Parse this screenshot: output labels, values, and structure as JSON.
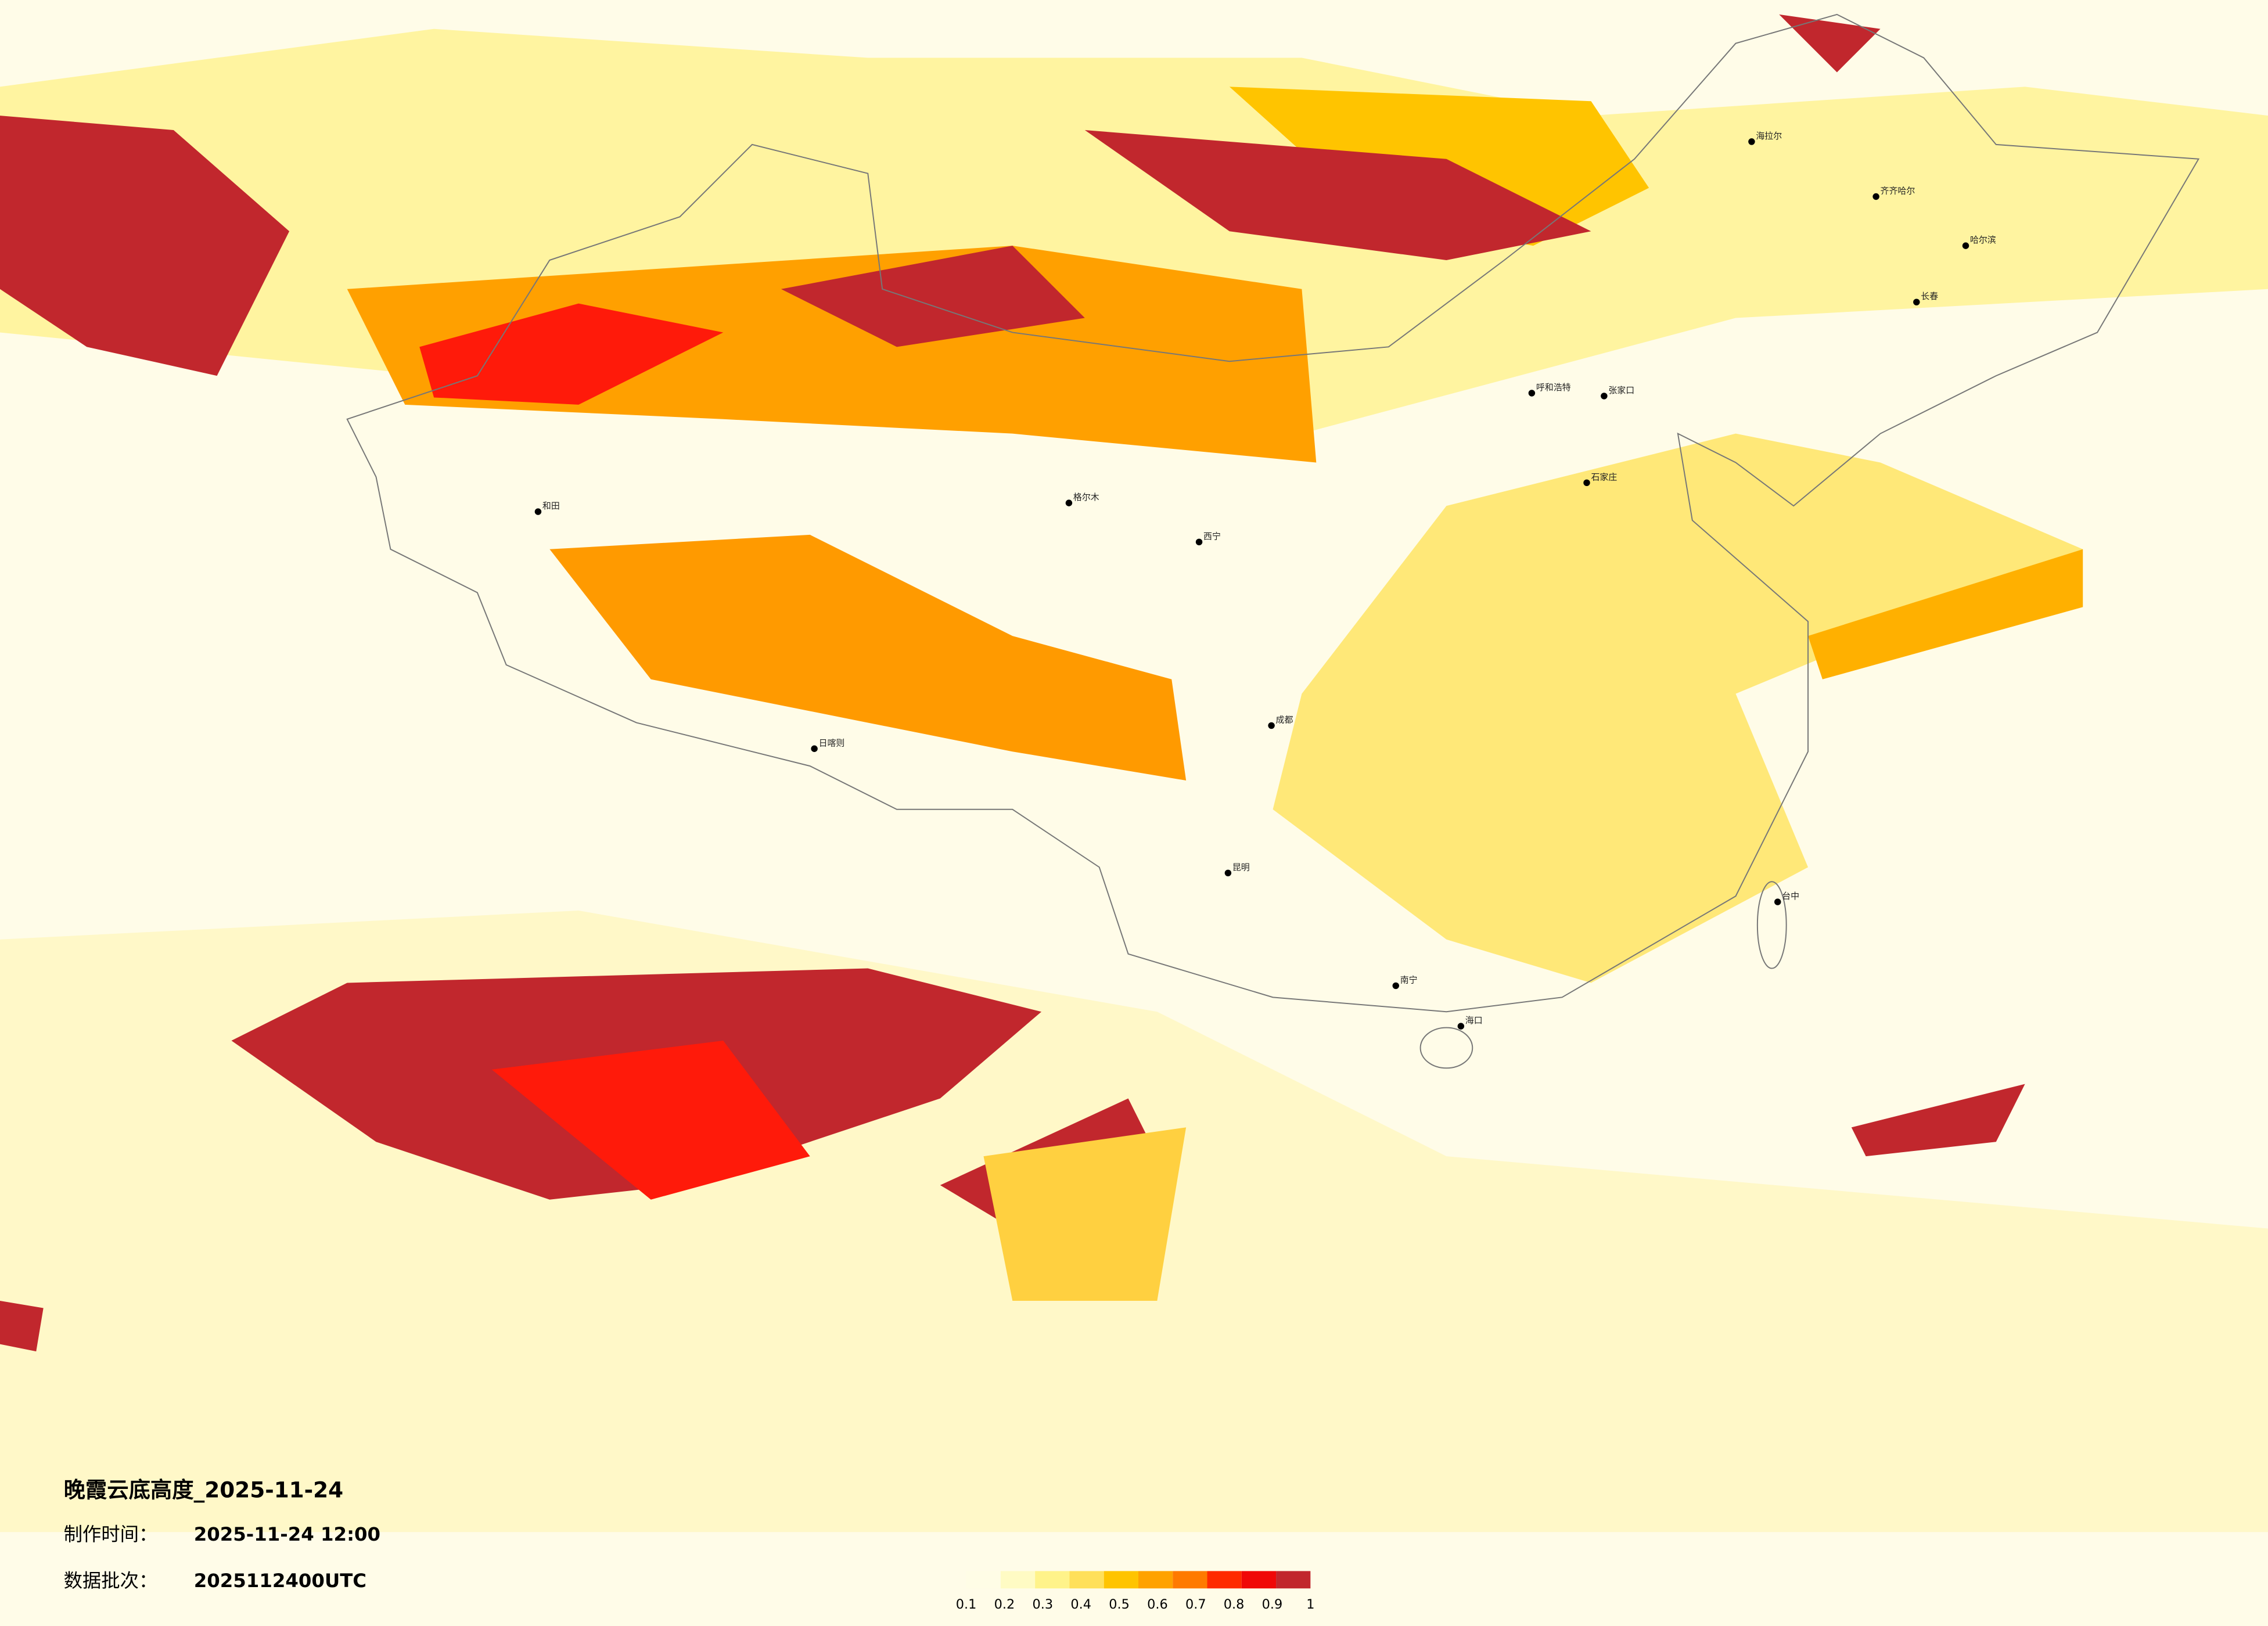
{
  "header": {
    "title": "晚霞云底高度_2025-11-24",
    "made_label": "制作时间：",
    "made_value": "2025-11-24 12:00",
    "batch_label": "数据批次：",
    "batch_value": "2025112400UTC"
  },
  "legend": {
    "ticks": [
      0.1,
      0.2,
      0.3,
      0.4,
      0.5,
      0.6,
      0.7,
      0.8,
      0.9,
      1
    ],
    "colors": [
      "#fffde6",
      "#fffbc4",
      "#fff38a",
      "#ffe05a",
      "#ffc400",
      "#ffa200",
      "#ff7a00",
      "#ff2a00",
      "#f00808",
      "#c1272d"
    ]
  },
  "cities": [
    "和田",
    "日喀则",
    "格尔木",
    "西宁",
    "呼和浩特",
    "张家口",
    "石家庄",
    "齐齐哈尔",
    "哈尔滨",
    "长春",
    "昆明",
    "南宁",
    "海口",
    "台中",
    "成都",
    "海拉尔"
  ]
}
